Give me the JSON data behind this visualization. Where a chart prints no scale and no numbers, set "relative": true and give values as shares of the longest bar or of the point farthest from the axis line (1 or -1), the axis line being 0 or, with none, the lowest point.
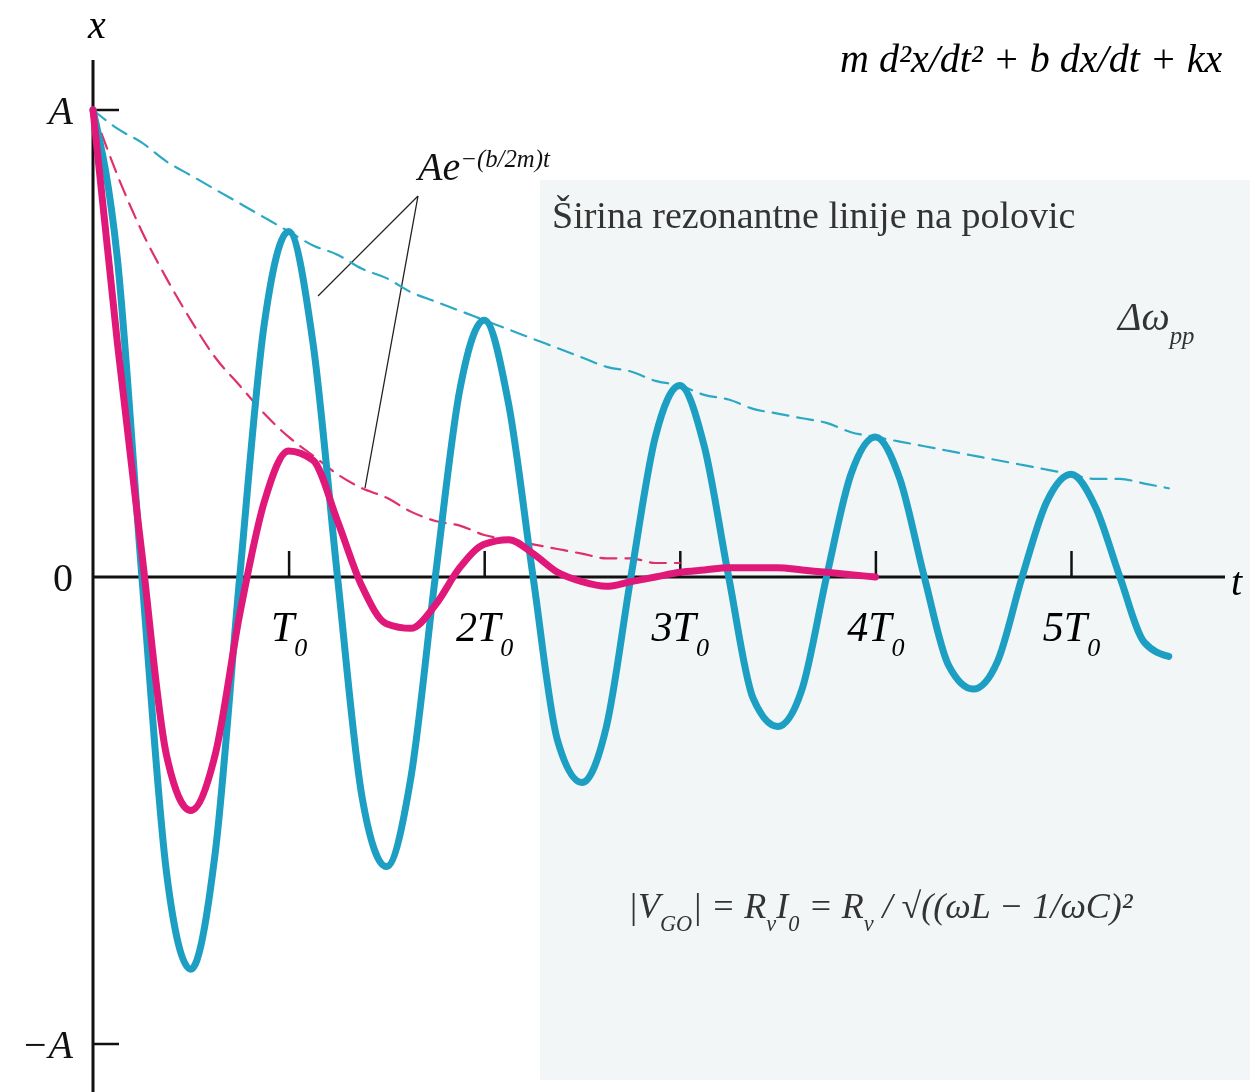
{
  "chart_data": {
    "type": "line",
    "relative": true,
    "xlabel": "t",
    "ylabel": "x",
    "marker": "none",
    "categories": [
      null,
      null,
      null,
      null,
      null,
      null,
      null,
      null,
      "T$_{0}$",
      null,
      null,
      null,
      null,
      null,
      null,
      null,
      "2T$_{0}$",
      null,
      null,
      null,
      null,
      null,
      null,
      null,
      "3T$_{0}$",
      null,
      null,
      null,
      null,
      null,
      null,
      null,
      "4T$_{0}$",
      null,
      null,
      null,
      null,
      null,
      null,
      null,
      "5T$_{0}$",
      null,
      null,
      null,
      null
    ],
    "series": [
      {
        "color": "#1c9fc2",
        "line_style": "solid",
        "values": [
          1,
          0.68,
          0,
          -0.63,
          -0.84,
          -0.59,
          0,
          0.54,
          0.74,
          0.5,
          0,
          -0.47,
          -0.62,
          -0.43,
          0,
          0.4,
          0.55,
          0.37,
          0,
          -0.35,
          -0.44,
          -0.32,
          0,
          0.3,
          0.41,
          0.28,
          0,
          -0.26,
          -0.32,
          -0.24,
          0,
          0.22,
          0.3,
          0.21,
          0,
          -0.19,
          -0.24,
          -0.18,
          0,
          0.16,
          0.22,
          0.15,
          0,
          -0.14,
          -0.17
        ]
      },
      {
        "color": "#e0187a",
        "line_style": "solid",
        "values": [
          1,
          0.5,
          0.05,
          -0.38,
          -0.5,
          -0.38,
          -0.08,
          0.16,
          0.27,
          0.25,
          0.12,
          -0.02,
          -0.1,
          -0.11,
          -0.06,
          0.02,
          0.07,
          0.08,
          0.05,
          0.01,
          -0.01,
          -0.02,
          -0.01,
          0,
          0.01,
          0.015,
          0.02,
          0.02,
          0.02,
          0.015,
          0.01,
          0.005,
          0,
          null,
          null,
          null,
          null,
          null,
          null,
          null,
          null,
          null,
          null,
          null,
          null
        ]
      },
      {
        "color": "#2aa8c4",
        "line_style": "dashed",
        "values": [
          1,
          0.96,
          0.93,
          0.89,
          0.86,
          0.83,
          0.8,
          0.77,
          0.74,
          0.71,
          0.69,
          0.66,
          0.64,
          0.61,
          0.59,
          0.57,
          0.55,
          0.53,
          0.51,
          0.49,
          0.47,
          0.45,
          0.44,
          0.42,
          0.41,
          0.39,
          0.38,
          0.36,
          0.35,
          0.34,
          0.33,
          0.31,
          0.3,
          0.29,
          0.28,
          0.27,
          0.26,
          0.25,
          0.24,
          0.23,
          0.22,
          0.21,
          0.21,
          0.2,
          0.19
        ]
      },
      {
        "color": "#e0306a",
        "line_style": "dashed",
        "values": [
          1,
          0.86,
          0.74,
          0.64,
          0.55,
          0.47,
          0.41,
          0.35,
          0.3,
          0.26,
          0.22,
          0.19,
          0.17,
          0.14,
          0.12,
          0.11,
          0.09,
          0.08,
          0.07,
          0.06,
          0.05,
          0.04,
          0.04,
          0.03,
          0.03,
          null,
          null,
          null,
          null,
          null,
          null,
          null,
          null,
          null,
          null,
          null,
          null,
          null,
          null,
          null,
          null,
          null,
          null,
          null,
          null
        ]
      }
    ],
    "annotations": [
      "Ae$^{−(b/2m)t}$",
      "m d²x/dt² + b dx/dt + kx",
      "Širina rezonantne linije na polovic",
      "Δω$_{pp}$",
      "|V$_{GO}$| = R$_{v}$I$_{0}$ = R$_{v}$ / √((ωL − 1/ωC)²",
      "A",
      "0",
      "−A"
    ]
  }
}
